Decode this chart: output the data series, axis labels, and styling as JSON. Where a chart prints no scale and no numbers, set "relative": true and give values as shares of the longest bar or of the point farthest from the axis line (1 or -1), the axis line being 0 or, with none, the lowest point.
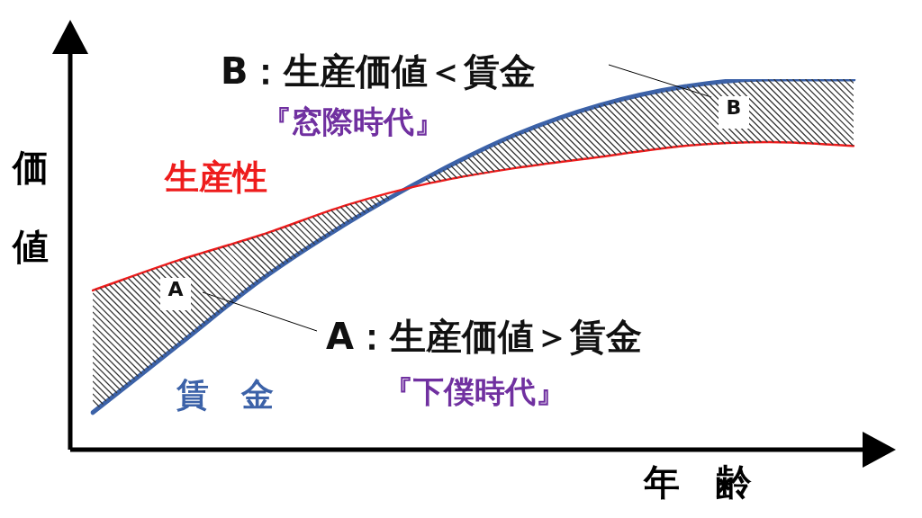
{
  "chart_data": {
    "type": "line",
    "relative": true,
    "marker": "none",
    "line_style": "solid",
    "categories": [
      null,
      null,
      null,
      null,
      null,
      null,
      null,
      null,
      null,
      null
    ],
    "series": [
      {
        "name": "生産性",
        "color": "#ee1c1c",
        "values": [
          0.43,
          0.51,
          0.58,
          0.66,
          0.72,
          0.76,
          0.79,
          0.82,
          0.83,
          0.82
        ]
      },
      {
        "name": "賃　金",
        "color": "#3c62a8",
        "values": [
          0.1,
          0.28,
          0.46,
          0.61,
          0.74,
          0.85,
          0.93,
          0.98,
          1.0,
          1.0
        ]
      }
    ],
    "xlabel": "年　齢",
    "ylabel": "価値",
    "annotations": [
      "B：生産価値＜賃金",
      "『窓際時代』",
      "A：生産価値＞賃金",
      "『下僕時代』",
      "A",
      "B"
    ]
  }
}
